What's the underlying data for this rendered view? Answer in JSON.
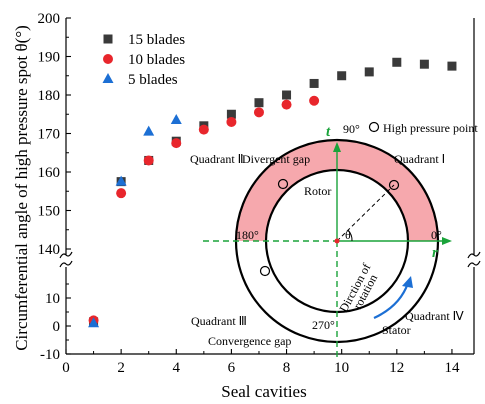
{
  "chart_data": {
    "type": "scatter",
    "xlabel": "Seal cavities",
    "ylabel": "Circumferential angle of high pressure spot θ(°)",
    "xlim": [
      0,
      14.8
    ],
    "xticks": [
      "0",
      "2",
      "4",
      "6",
      "8",
      "10",
      "12",
      "14"
    ],
    "ylim_lower": [
      -10,
      20
    ],
    "ylim_upper": [
      140,
      200
    ],
    "yticks_lower": [
      "-10",
      "0",
      "10"
    ],
    "yticks_upper": [
      "140",
      "150",
      "160",
      "170",
      "180",
      "190",
      "200"
    ],
    "axis_break": true,
    "grid": false,
    "legend_position": "top-left",
    "series": [
      {
        "name": "15 blades",
        "marker": "square",
        "color": "#3a3a3a",
        "points": [
          [
            1,
            1.5
          ],
          [
            2,
            157.5
          ],
          [
            3,
            163
          ],
          [
            4,
            168
          ],
          [
            5,
            172
          ],
          [
            6,
            175
          ],
          [
            7,
            178
          ],
          [
            8,
            180
          ],
          [
            9,
            183
          ],
          [
            10,
            185
          ],
          [
            11,
            186
          ],
          [
            12,
            188.5
          ],
          [
            13,
            188
          ],
          [
            14,
            187.5
          ]
        ]
      },
      {
        "name": "10 blades",
        "marker": "circle",
        "color": "#e8262c",
        "points": [
          [
            1,
            2
          ],
          [
            2,
            154.5
          ],
          [
            3,
            163
          ],
          [
            4,
            167.5
          ],
          [
            5,
            171
          ],
          [
            6,
            173
          ],
          [
            7,
            175.5
          ],
          [
            8,
            177.5
          ],
          [
            9,
            178.5
          ]
        ]
      },
      {
        "name": "5 blades",
        "marker": "triangle",
        "color": "#1c6fd4",
        "points": [
          [
            1,
            1
          ],
          [
            2,
            157.5
          ],
          [
            3,
            170.5
          ],
          [
            4,
            173.5
          ]
        ]
      }
    ]
  },
  "inset": {
    "divergent_gap": "Divergent gap",
    "convergence_gap": "Convergence gap",
    "rotor": "Rotor",
    "stator": "Stator",
    "high_pressure_point": "High pressure point",
    "quadrant_1": "Quadrant Ⅰ",
    "quadrant_2": "Quadrant Ⅱ",
    "quadrant_3": "Quadrant Ⅲ",
    "quadrant_4": "Quadrant Ⅳ",
    "angle_90": "90°",
    "angle_180": "180°",
    "angle_270": "270°",
    "angle_0": "0°",
    "theta": "θ",
    "t_axis": "t",
    "r_axis": "r",
    "rotation_line1": "Dirction of",
    "rotation_line2": "rotation",
    "colors": {
      "gap_fill": "#f6a8ad",
      "axis_green": "#1aa33a",
      "rotation_blue": "#1c6fd4"
    }
  }
}
